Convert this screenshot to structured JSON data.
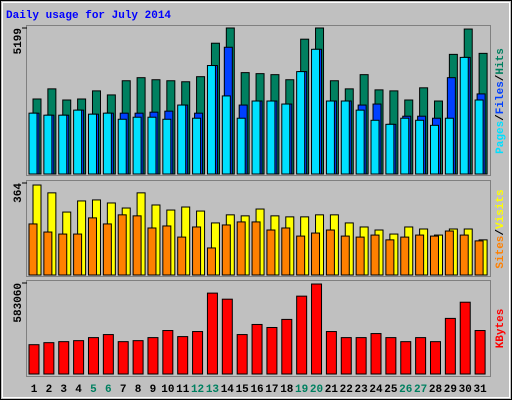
{
  "chart_data": [
    {
      "type": "bar",
      "title": "Daily usage for July 2014",
      "label_separator": "/",
      "ylim": [
        0,
        5199
      ],
      "yticks": [
        5199
      ],
      "series": [
        {
          "name": "Hits",
          "color": "#008060",
          "values": [
            2671,
            3032,
            2635,
            2671,
            2960,
            2816,
            3321,
            3430,
            3357,
            3321,
            3285,
            3466,
            4657,
            5199,
            3610,
            3574,
            3538,
            3357,
            4801,
            5199,
            3321,
            3032,
            3538,
            2996,
            2960,
            2635,
            3069,
            2599,
            4260,
            5162,
            4296
          ]
        },
        {
          "name": "Files",
          "color": "#0040ff",
          "values": [
            2166,
            2094,
            2094,
            2274,
            2130,
            2166,
            2166,
            2166,
            2202,
            2238,
            2455,
            2166,
            3863,
            4513,
            2455,
            2599,
            2599,
            2491,
            3646,
            4440,
            2599,
            2599,
            2455,
            2491,
            1769,
            2058,
            2058,
            1986,
            3430,
            4152,
            2852
          ]
        },
        {
          "name": "Pages",
          "color": "#00e0ff",
          "values": [
            2166,
            2094,
            2094,
            2274,
            2130,
            2166,
            1949,
            2022,
            2022,
            1949,
            2455,
            1986,
            3863,
            2780,
            1986,
            2599,
            2599,
            2491,
            3646,
            4440,
            2599,
            2599,
            2274,
            1913,
            1769,
            1986,
            1913,
            1733,
            1986,
            4152,
            2635
          ]
        }
      ]
    },
    {
      "type": "bar",
      "label_separator": "/",
      "ylim": [
        0,
        364
      ],
      "yticks": [
        364
      ],
      "series": [
        {
          "name": "Visits",
          "color": "#ffff00",
          "values": [
            356,
            325,
            249,
            293,
            297,
            285,
            265,
            325,
            277,
            257,
            269,
            253,
            206,
            238,
            234,
            261,
            234,
            230,
            230,
            238,
            238,
            206,
            190,
            178,
            162,
            190,
            182,
            158,
            182,
            182,
            139
          ]
        },
        {
          "name": "Sites",
          "color": "#ff8000",
          "values": [
            202,
            170,
            162,
            162,
            226,
            202,
            238,
            234,
            186,
            194,
            150,
            190,
            107,
            198,
            210,
            210,
            178,
            186,
            154,
            166,
            178,
            154,
            150,
            158,
            139,
            150,
            158,
            154,
            174,
            158,
            135
          ]
        }
      ]
    },
    {
      "type": "bar",
      "ylim": [
        0,
        583060
      ],
      "yticks": [
        583060
      ],
      "categories": [
        "1",
        "2",
        "3",
        "4",
        "5",
        "6",
        "7",
        "8",
        "9",
        "10",
        "11",
        "12",
        "13",
        "14",
        "15",
        "16",
        "17",
        "18",
        "19",
        "20",
        "21",
        "22",
        "23",
        "24",
        "25",
        "26",
        "27",
        "28",
        "29",
        "30",
        "31"
      ],
      "category_colors": [
        "#000000",
        "#000000",
        "#000000",
        "#000000",
        "#008060",
        "#008060",
        "#000000",
        "#000000",
        "#000000",
        "#000000",
        "#000000",
        "#008060",
        "#008060",
        "#000000",
        "#000000",
        "#000000",
        "#000000",
        "#000000",
        "#008060",
        "#008060",
        "#000000",
        "#000000",
        "#000000",
        "#000000",
        "#000000",
        "#008060",
        "#008060",
        "#000000",
        "#000000",
        "#000000",
        "#000000"
      ],
      "series": [
        {
          "name": "KBytes",
          "color": "#ff0000",
          "values": [
            187862,
            200818,
            207296,
            213774,
            233208,
            252642,
            207296,
            213774,
            233208,
            278554,
            239686,
            272076,
            518240,
            479372,
            252642,
            317422,
            297988,
            349812,
            498806,
            576542,
            272076,
            233208,
            233208,
            259120,
            233208,
            207296,
            233208,
            207296,
            356290,
            459938,
            278554
          ]
        }
      ]
    }
  ]
}
